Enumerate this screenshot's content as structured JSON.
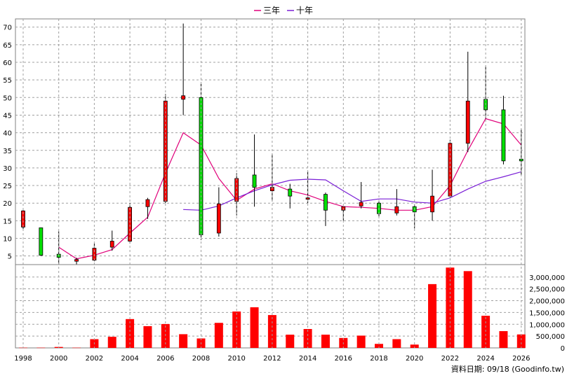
{
  "chart_data": [
    {
      "type": "candlestick",
      "legend": [
        {
          "name": "三年",
          "color": "#e0007a"
        },
        {
          "name": "十年",
          "color": "#7a1fd6"
        }
      ],
      "x_ticks": [
        "1998",
        "2000",
        "2002",
        "2004",
        "2006",
        "2008",
        "2010",
        "2012",
        "2014",
        "2016",
        "2018",
        "2020",
        "2022",
        "2024",
        "2026"
      ],
      "y_ticks": [
        "5",
        "10",
        "15",
        "20",
        "25",
        "30",
        "35",
        "40",
        "45",
        "50",
        "55",
        "60",
        "65",
        "70"
      ],
      "ylim": [
        2,
        72
      ],
      "grid": true,
      "candles": [
        {
          "year": 1998,
          "open": 13.2,
          "close": 17.8,
          "high": 18.0,
          "low": 12.5
        },
        {
          "year": 1999,
          "open": 13.0,
          "close": 5.2,
          "high": 13.0,
          "low": 5.0
        },
        {
          "year": 2000,
          "open": 5.5,
          "close": 4.6,
          "high": 12.0,
          "low": 2.5
        },
        {
          "year": 2001,
          "open": 3.5,
          "close": 4.0,
          "high": 4.5,
          "low": 2.0
        },
        {
          "year": 2002,
          "open": 3.8,
          "close": 7.2,
          "high": 8.5,
          "low": 3.5
        },
        {
          "year": 2003,
          "open": 7.5,
          "close": 9.2,
          "high": 12.2,
          "low": 6.5
        },
        {
          "year": 2004,
          "open": 9.2,
          "close": 18.8,
          "high": 20.0,
          "low": 8.5
        },
        {
          "year": 2005,
          "open": 19.0,
          "close": 21.0,
          "high": 21.5,
          "low": 15.5
        },
        {
          "year": 2006,
          "open": 20.5,
          "close": 49.0,
          "high": 51.0,
          "low": 20.0
        },
        {
          "year": 2007,
          "open": 49.5,
          "close": 50.5,
          "high": 71.0,
          "low": 45.0
        },
        {
          "year": 2008,
          "open": 50.0,
          "close": 11.0,
          "high": 54.0,
          "low": 9.5
        },
        {
          "year": 2009,
          "open": 11.5,
          "close": 19.8,
          "high": 24.5,
          "low": 10.5
        },
        {
          "year": 2010,
          "open": 20.5,
          "close": 27.0,
          "high": 28.5,
          "low": 16.5
        },
        {
          "year": 2011,
          "open": 28.0,
          "close": 24.5,
          "high": 39.5,
          "low": 19.0
        },
        {
          "year": 2012,
          "open": 23.5,
          "close": 24.5,
          "high": 34.0,
          "low": 20.5
        },
        {
          "year": 2013,
          "open": 24.0,
          "close": 22.0,
          "high": 25.5,
          "low": 18.5
        },
        {
          "year": 2014,
          "open": 21.5,
          "close": 21.5,
          "high": 29.0,
          "low": 20.0
        },
        {
          "year": 2015,
          "open": 22.5,
          "close": 18.0,
          "high": 23.0,
          "low": 13.5
        },
        {
          "year": 2016,
          "open": 18.0,
          "close": 19.0,
          "high": 19.0,
          "low": 15.0
        },
        {
          "year": 2017,
          "open": 19.2,
          "close": 20.2,
          "high": 26.0,
          "low": 18.5
        },
        {
          "year": 2018,
          "open": 20.0,
          "close": 17.0,
          "high": 21.0,
          "low": 16.0
        },
        {
          "year": 2019,
          "open": 17.2,
          "close": 19.0,
          "high": 24.0,
          "low": 16.5
        },
        {
          "year": 2020,
          "open": 19.0,
          "close": 17.5,
          "high": 19.5,
          "low": 12.8
        },
        {
          "year": 2021,
          "open": 17.5,
          "close": 22.0,
          "high": 29.5,
          "low": 15.0
        },
        {
          "year": 2022,
          "open": 22.0,
          "close": 37.0,
          "high": 38.0,
          "low": 21.5
        },
        {
          "year": 2023,
          "open": 37.0,
          "close": 49.0,
          "high": 63.0,
          "low": 34.5
        },
        {
          "year": 2024,
          "open": 49.5,
          "close": 46.5,
          "high": 59.0,
          "low": 44.0
        },
        {
          "year": 2025,
          "open": 46.5,
          "close": 32.0,
          "high": 50.5,
          "low": 31.0
        },
        {
          "year": 2026,
          "open": 32.5,
          "close": 32.0,
          "high": 41.0,
          "low": 28.0
        }
      ],
      "series": [
        {
          "name": "三年",
          "color": "#e0007a",
          "points": [
            [
              2000,
              7.5
            ],
            [
              2001,
              4.2
            ],
            [
              2002,
              5.2
            ],
            [
              2003,
              6.8
            ],
            [
              2004,
              11.5
            ],
            [
              2005,
              16.0
            ],
            [
              2006,
              28.5
            ],
            [
              2007,
              40.0
            ],
            [
              2008,
              36.5
            ],
            [
              2009,
              27.0
            ],
            [
              2010,
              20.8
            ],
            [
              2011,
              24.0
            ],
            [
              2012,
              25.5
            ],
            [
              2013,
              23.5
            ],
            [
              2014,
              22.3
            ],
            [
              2015,
              20.5
            ],
            [
              2016,
              19.0
            ],
            [
              2017,
              18.8
            ],
            [
              2018,
              18.5
            ],
            [
              2019,
              18.0
            ],
            [
              2020,
              18.0
            ],
            [
              2021,
              19.0
            ],
            [
              2022,
              25.0
            ],
            [
              2023,
              35.0
            ],
            [
              2024,
              44.0
            ],
            [
              2025,
              42.5
            ],
            [
              2026,
              36.5
            ]
          ]
        },
        {
          "name": "十年",
          "color": "#7a1fd6",
          "points": [
            [
              2007,
              18.2
            ],
            [
              2008,
              18.0
            ],
            [
              2009,
              19.2
            ],
            [
              2010,
              21.5
            ],
            [
              2011,
              23.5
            ],
            [
              2012,
              25.2
            ],
            [
              2013,
              26.5
            ],
            [
              2014,
              26.8
            ],
            [
              2015,
              26.6
            ],
            [
              2016,
              23.5
            ],
            [
              2017,
              20.5
            ],
            [
              2018,
              21.2
            ],
            [
              2019,
              21.2
            ],
            [
              2020,
              20.3
            ],
            [
              2021,
              20.0
            ],
            [
              2022,
              21.5
            ],
            [
              2023,
              24.0
            ],
            [
              2024,
              26.2
            ],
            [
              2025,
              27.5
            ],
            [
              2026,
              28.9
            ]
          ]
        }
      ]
    },
    {
      "type": "bar",
      "color": "#ff0000",
      "y_ticks": [
        "0",
        "500,000",
        "1,000,000",
        "1,500,000",
        "2,000,000",
        "2,500,000",
        "3,000,000"
      ],
      "ylim": [
        0,
        3600000
      ],
      "grid": true,
      "bars": [
        {
          "year": 1998,
          "value": 10000
        },
        {
          "year": 1999,
          "value": 10000
        },
        {
          "year": 2000,
          "value": 40000
        },
        {
          "year": 2001,
          "value": 10000
        },
        {
          "year": 2002,
          "value": 370000
        },
        {
          "year": 2003,
          "value": 470000
        },
        {
          "year": 2004,
          "value": 1220000
        },
        {
          "year": 2005,
          "value": 920000
        },
        {
          "year": 2006,
          "value": 1010000
        },
        {
          "year": 2007,
          "value": 580000
        },
        {
          "year": 2008,
          "value": 400000
        },
        {
          "year": 2009,
          "value": 1060000
        },
        {
          "year": 2010,
          "value": 1540000
        },
        {
          "year": 2011,
          "value": 1720000
        },
        {
          "year": 2012,
          "value": 1390000
        },
        {
          "year": 2013,
          "value": 560000
        },
        {
          "year": 2014,
          "value": 800000
        },
        {
          "year": 2015,
          "value": 560000
        },
        {
          "year": 2016,
          "value": 420000
        },
        {
          "year": 2017,
          "value": 520000
        },
        {
          "year": 2018,
          "value": 170000
        },
        {
          "year": 2019,
          "value": 370000
        },
        {
          "year": 2020,
          "value": 140000
        },
        {
          "year": 2021,
          "value": 2700000
        },
        {
          "year": 2022,
          "value": 3400000
        },
        {
          "year": 2023,
          "value": 3250000
        },
        {
          "year": 2024,
          "value": 1360000
        },
        {
          "year": 2025,
          "value": 710000
        },
        {
          "year": 2026,
          "value": 570000
        }
      ]
    }
  ],
  "footer": {
    "credit": "資料日期: 09/18 (Goodinfo.tw)"
  }
}
